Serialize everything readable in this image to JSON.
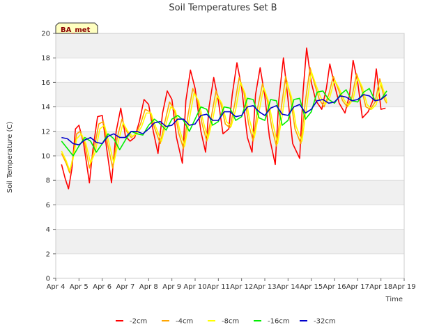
{
  "chart_data": {
    "type": "line",
    "title": "Soil Temperatures Set B",
    "xlabel": "Time",
    "ylabel": "Soil Temperature (C)",
    "station_label": "BA_met",
    "xlim": [
      4,
      19
    ],
    "ylim": [
      0,
      20
    ],
    "xticks": [
      {
        "value": 4,
        "label": "Apr 4"
      },
      {
        "value": 5,
        "label": "Apr 5"
      },
      {
        "value": 6,
        "label": "Apr 6"
      },
      {
        "value": 7,
        "label": "Apr 7"
      },
      {
        "value": 8,
        "label": "Apr 8"
      },
      {
        "value": 9,
        "label": "Apr 9"
      },
      {
        "value": 10,
        "label": "Apr 10"
      },
      {
        "value": 11,
        "label": "Apr 11"
      },
      {
        "value": 12,
        "label": "Apr 12"
      },
      {
        "value": 13,
        "label": "Apr 13"
      },
      {
        "value": 14,
        "label": "Apr 14"
      },
      {
        "value": 15,
        "label": "Apr 15"
      },
      {
        "value": 16,
        "label": "Apr 16"
      },
      {
        "value": 17,
        "label": "Apr 17"
      },
      {
        "value": 18,
        "label": "Apr 18"
      },
      {
        "value": 19,
        "label": "Apr 19"
      }
    ],
    "yticks": [
      {
        "value": 0,
        "label": "0"
      },
      {
        "value": 2,
        "label": "2"
      },
      {
        "value": 4,
        "label": "4"
      },
      {
        "value": 6,
        "label": "6"
      },
      {
        "value": 8,
        "label": "8"
      },
      {
        "value": 10,
        "label": "10"
      },
      {
        "value": 12,
        "label": "12"
      },
      {
        "value": 14,
        "label": "14"
      },
      {
        "value": 16,
        "label": "16"
      },
      {
        "value": 18,
        "label": "18"
      },
      {
        "value": 20,
        "label": "20"
      }
    ],
    "grid": true,
    "legend_position": "bottom",
    "series": [
      {
        "name": "-2cm",
        "color": "#ff0000",
        "x": [
          4.25,
          4.4,
          4.55,
          4.7,
          4.85,
          5.0,
          5.2,
          5.45,
          5.6,
          5.8,
          6.0,
          6.2,
          6.4,
          6.6,
          6.8,
          7.0,
          7.2,
          7.4,
          7.6,
          7.8,
          8.0,
          8.2,
          8.4,
          8.6,
          8.8,
          9.0,
          9.2,
          9.45,
          9.6,
          9.8,
          10.0,
          10.25,
          10.45,
          10.6,
          10.8,
          11.0,
          11.2,
          11.45,
          11.6,
          11.8,
          12.0,
          12.25,
          12.45,
          12.6,
          12.8,
          13.0,
          13.2,
          13.45,
          13.6,
          13.8,
          14.0,
          14.2,
          14.5,
          14.65,
          14.8,
          15.0,
          15.2,
          15.45,
          15.65,
          15.8,
          16.0,
          16.2,
          16.45,
          16.65,
          16.8,
          17.0,
          17.2,
          17.45,
          17.65,
          17.8,
          18.0,
          18.2
        ],
        "y": [
          9.3,
          8.2,
          7.3,
          9.0,
          12.2,
          12.5,
          11.0,
          7.8,
          10.5,
          13.2,
          13.3,
          10.5,
          7.8,
          12.0,
          13.9,
          11.6,
          11.2,
          11.5,
          12.8,
          14.6,
          14.2,
          12.0,
          10.2,
          13.5,
          15.3,
          14.6,
          11.5,
          9.4,
          14.5,
          17.0,
          15.5,
          12.0,
          10.3,
          14.0,
          16.4,
          14.5,
          11.8,
          12.2,
          15.0,
          17.6,
          15.6,
          11.5,
          10.3,
          15.0,
          17.2,
          14.9,
          11.5,
          9.3,
          14.5,
          18.0,
          14.6,
          11.0,
          9.8,
          15.3,
          18.8,
          16.0,
          14.5,
          13.8,
          15.5,
          17.5,
          15.8,
          14.3,
          13.5,
          15.0,
          17.8,
          16.0,
          13.1,
          13.6,
          14.5,
          17.1,
          13.8,
          13.9
        ]
      },
      {
        "name": "-4cm",
        "color": "#ffa500",
        "x": [
          4.25,
          4.45,
          4.6,
          4.75,
          4.9,
          5.05,
          5.25,
          5.45,
          5.65,
          5.85,
          6.05,
          6.25,
          6.45,
          6.65,
          6.85,
          7.05,
          7.25,
          7.45,
          7.65,
          7.85,
          8.05,
          8.25,
          8.5,
          8.7,
          8.9,
          9.1,
          9.3,
          9.5,
          9.7,
          9.9,
          10.1,
          10.3,
          10.5,
          10.7,
          10.9,
          11.1,
          11.3,
          11.5,
          11.7,
          11.9,
          12.1,
          12.3,
          12.5,
          12.7,
          12.9,
          13.1,
          13.3,
          13.5,
          13.7,
          13.9,
          14.1,
          14.3,
          14.55,
          14.75,
          14.95,
          15.15,
          15.35,
          15.55,
          15.75,
          15.95,
          16.15,
          16.35,
          16.55,
          16.75,
          16.95,
          17.15,
          17.35,
          17.55,
          17.75,
          17.95,
          18.15,
          18.25
        ],
        "y": [
          10.2,
          9.4,
          8.6,
          10.0,
          11.8,
          12.0,
          11.0,
          9.0,
          10.5,
          12.6,
          12.8,
          10.8,
          9.0,
          11.5,
          13.0,
          12.0,
          11.5,
          11.8,
          12.6,
          13.8,
          13.6,
          12.3,
          11.0,
          12.8,
          14.4,
          13.8,
          11.8,
          10.6,
          13.4,
          15.5,
          14.6,
          12.6,
          11.2,
          13.2,
          15.3,
          14.3,
          12.6,
          12.3,
          14.2,
          16.4,
          15.2,
          12.6,
          11.2,
          14.0,
          15.9,
          14.6,
          12.3,
          10.8,
          13.8,
          16.5,
          14.8,
          12.2,
          11.0,
          14.5,
          17.2,
          15.8,
          14.6,
          14.0,
          15.0,
          16.5,
          15.5,
          14.5,
          14.0,
          14.8,
          16.7,
          15.6,
          14.0,
          13.8,
          14.4,
          16.3,
          14.6,
          14.3
        ]
      },
      {
        "name": "-8cm",
        "color": "#ffff00",
        "x": [
          4.25,
          4.45,
          4.6,
          4.75,
          4.9,
          5.1,
          5.3,
          5.5,
          5.7,
          5.9,
          6.1,
          6.3,
          6.5,
          6.7,
          6.9,
          7.1,
          7.3,
          7.5,
          7.7,
          7.9,
          8.1,
          8.3,
          8.55,
          8.75,
          8.95,
          9.15,
          9.35,
          9.55,
          9.75,
          9.95,
          10.15,
          10.35,
          10.55,
          10.75,
          10.95,
          11.15,
          11.35,
          11.55,
          11.75,
          11.95,
          12.15,
          12.35,
          12.55,
          12.75,
          12.95,
          13.15,
          13.35,
          13.55,
          13.75,
          13.95,
          14.15,
          14.35,
          14.6,
          14.8,
          15.0,
          15.2,
          15.4,
          15.6,
          15.8,
          16.0,
          16.2,
          16.4,
          16.6,
          16.8,
          17.0,
          17.2,
          17.4,
          17.6,
          17.8,
          18.0,
          18.2,
          18.25
        ],
        "y": [
          10.4,
          9.6,
          8.8,
          9.8,
          11.4,
          11.8,
          11.0,
          9.4,
          10.3,
          12.2,
          12.5,
          11.0,
          9.4,
          11.2,
          12.7,
          12.0,
          11.6,
          11.8,
          12.4,
          13.5,
          13.5,
          12.4,
          11.2,
          12.6,
          14.0,
          13.7,
          12.0,
          10.8,
          13.0,
          15.1,
          14.5,
          12.8,
          11.4,
          12.9,
          14.9,
          14.3,
          12.8,
          12.4,
          13.8,
          16.0,
          15.1,
          12.9,
          11.5,
          13.6,
          15.6,
          14.5,
          12.6,
          11.0,
          13.3,
          16.0,
          14.8,
          12.4,
          11.2,
          14.0,
          16.9,
          15.8,
          14.8,
          14.2,
          14.8,
          16.2,
          15.5,
          14.6,
          14.1,
          14.6,
          16.4,
          15.6,
          14.2,
          13.8,
          14.2,
          16.0,
          14.8,
          14.4
        ]
      },
      {
        "name": "-16cm",
        "color": "#00ee00",
        "x": [
          4.25,
          4.5,
          4.75,
          5.0,
          5.25,
          5.5,
          5.75,
          6.0,
          6.25,
          6.5,
          6.75,
          7.0,
          7.25,
          7.5,
          7.75,
          8.0,
          8.25,
          8.5,
          8.75,
          9.0,
          9.25,
          9.5,
          9.75,
          10.0,
          10.25,
          10.5,
          10.75,
          11.0,
          11.25,
          11.5,
          11.75,
          12.0,
          12.25,
          12.5,
          12.75,
          13.0,
          13.25,
          13.5,
          13.75,
          14.0,
          14.25,
          14.5,
          14.75,
          15.0,
          15.25,
          15.5,
          15.75,
          16.0,
          16.25,
          16.5,
          16.75,
          17.0,
          17.25,
          17.5,
          17.75,
          18.0,
          18.25
        ],
        "y": [
          11.2,
          10.6,
          10.0,
          10.8,
          11.5,
          11.2,
          10.3,
          11.0,
          11.8,
          11.4,
          10.5,
          11.3,
          12.0,
          11.8,
          11.7,
          12.5,
          13.0,
          12.6,
          12.1,
          13.0,
          13.3,
          12.9,
          12.0,
          13.0,
          14.0,
          13.8,
          12.5,
          12.8,
          14.0,
          13.9,
          12.9,
          13.2,
          14.7,
          14.6,
          13.1,
          12.9,
          14.6,
          14.5,
          12.5,
          12.9,
          14.6,
          14.7,
          13.0,
          13.6,
          15.2,
          15.3,
          14.6,
          14.3,
          15.0,
          15.4,
          14.5,
          14.4,
          15.2,
          15.5,
          14.5,
          14.6,
          15.3
        ]
      },
      {
        "name": "-32cm",
        "color": "#0000cc",
        "x": [
          4.25,
          4.5,
          4.75,
          5.0,
          5.25,
          5.5,
          5.75,
          6.0,
          6.25,
          6.5,
          6.75,
          7.0,
          7.25,
          7.5,
          7.75,
          8.0,
          8.25,
          8.5,
          8.75,
          9.0,
          9.25,
          9.5,
          9.75,
          10.0,
          10.25,
          10.5,
          10.75,
          11.0,
          11.25,
          11.5,
          11.75,
          12.0,
          12.25,
          12.5,
          12.75,
          13.0,
          13.25,
          13.5,
          13.75,
          14.0,
          14.25,
          14.5,
          14.75,
          15.0,
          15.25,
          15.5,
          15.75,
          16.0,
          16.25,
          16.5,
          16.75,
          17.0,
          17.25,
          17.5,
          17.75,
          18.0,
          18.25
        ],
        "y": [
          11.5,
          11.4,
          11.0,
          10.9,
          11.3,
          11.5,
          11.1,
          11.0,
          11.6,
          11.8,
          11.5,
          11.5,
          12.0,
          12.0,
          11.8,
          12.2,
          12.7,
          12.8,
          12.4,
          12.5,
          13.0,
          13.0,
          12.5,
          12.6,
          13.3,
          13.4,
          12.9,
          12.9,
          13.6,
          13.6,
          13.2,
          13.3,
          14.0,
          14.1,
          13.6,
          13.3,
          13.9,
          14.1,
          13.4,
          13.3,
          14.0,
          14.2,
          13.5,
          13.8,
          14.5,
          14.6,
          14.3,
          14.4,
          14.9,
          14.8,
          14.5,
          14.6,
          15.0,
          14.9,
          14.5,
          14.6,
          15.0
        ]
      }
    ]
  }
}
